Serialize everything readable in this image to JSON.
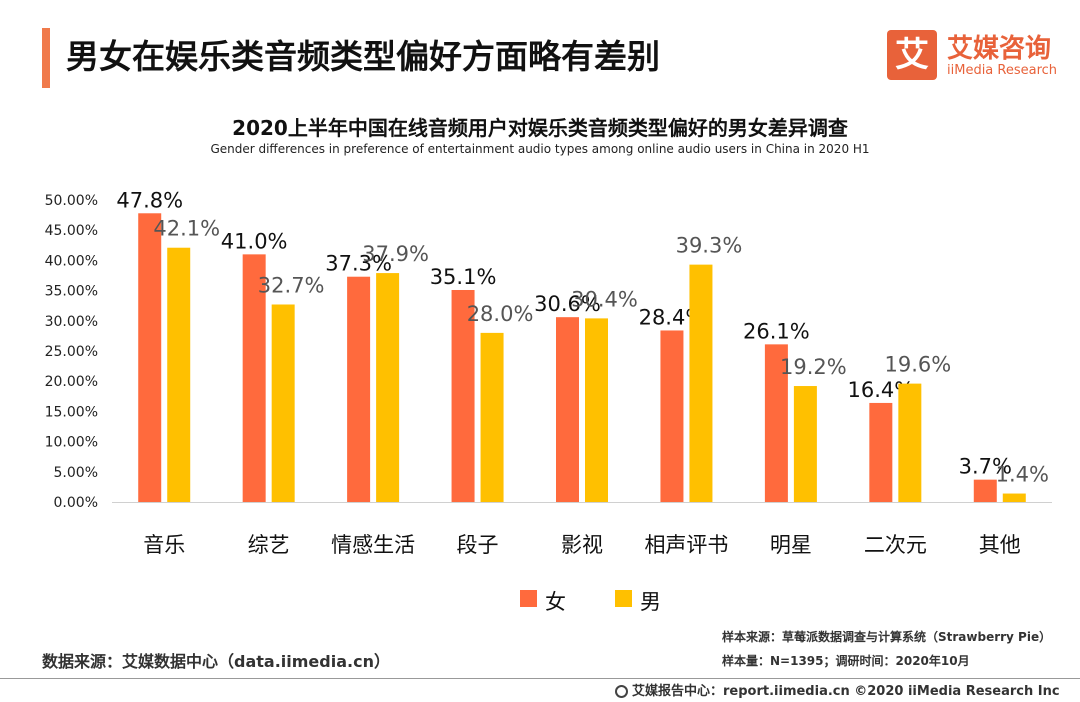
{
  "header": {
    "title": "男女在娱乐类音频类型偏好方面略有差别",
    "logo_mark": "艾",
    "logo_cn": "艾媒咨询",
    "logo_en": "iiMedia Research"
  },
  "chart_data": {
    "type": "bar",
    "title": "2020上半年中国在线音频用户对娱乐类音频类型偏好的男女差异调查",
    "subtitle": "Gender differences in preference of entertainment audio types among online audio users in China  in 2020 H1",
    "categories": [
      "音乐",
      "综艺",
      "情感生活",
      "段子",
      "影视",
      "相声评书",
      "明星",
      "二次元",
      "其他"
    ],
    "series": [
      {
        "name": "女",
        "color": "#ff6a3d",
        "values": [
          47.8,
          41.0,
          37.3,
          35.1,
          30.6,
          28.4,
          26.1,
          16.4,
          3.7
        ]
      },
      {
        "name": "男",
        "color": "#ffc000",
        "values": [
          42.1,
          32.7,
          37.9,
          28.0,
          30.4,
          39.3,
          19.2,
          19.6,
          1.4
        ]
      }
    ],
    "yticks": [
      "0.00%",
      "5.00%",
      "10.00%",
      "15.00%",
      "20.00%",
      "25.00%",
      "30.00%",
      "35.00%",
      "40.00%",
      "45.00%",
      "50.00%"
    ],
    "ylim": [
      0,
      50
    ],
    "xlabel": "",
    "ylabel": "",
    "legend": "bottom-center"
  },
  "sources": {
    "left": "数据来源：艾媒数据中心（data.iimedia.cn）",
    "sample_source": "样本来源：草莓派数据调查与计算系统（Strawberry Pie）",
    "sample_size": "样本量：N=1395；调研时间：2020年10月",
    "footer": "艾媒报告中心：report.iimedia.cn   ©2020  iiMedia Research  Inc"
  }
}
